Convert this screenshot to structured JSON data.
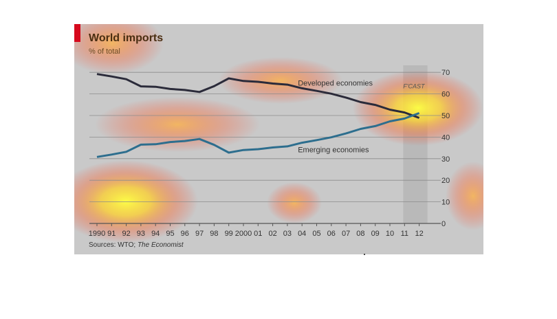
{
  "header": {
    "title": "World imports",
    "subtitle": "% of total"
  },
  "footer": {
    "source_prefix": "Sources: WTO; ",
    "source_italic": "The Economist"
  },
  "colors": {
    "background": "#c9c9c9",
    "developed": "#2b2b3a",
    "emerging": "#2d6e8e",
    "accent": "#d6091d",
    "gridline": "#8c8c8c"
  },
  "chart_data": {
    "type": "line",
    "title": "World imports",
    "subtitle": "% of total",
    "x": [
      1990,
      1991,
      1992,
      1993,
      1994,
      1995,
      1996,
      1997,
      1998,
      1999,
      2000,
      2001,
      2002,
      2003,
      2004,
      2005,
      2006,
      2007,
      2008,
      2009,
      2010,
      2011,
      2012
    ],
    "x_tick_labels": [
      "1990",
      "91",
      "92",
      "93",
      "94",
      "95",
      "96",
      "97",
      "98",
      "99",
      "2000",
      "01",
      "02",
      "03",
      "04",
      "05",
      "06",
      "07",
      "08",
      "09",
      "10",
      "11",
      "12"
    ],
    "y_ticks": [
      0,
      10,
      20,
      30,
      40,
      50,
      60,
      70
    ],
    "ylim": [
      0,
      70
    ],
    "y_axis_side": "right",
    "grid": true,
    "forecast_label": "F'CAST",
    "forecast_from": 2011,
    "series": [
      {
        "name": "Developed economies",
        "values": [
          69.2,
          68.1,
          66.8,
          63.5,
          63.3,
          62.3,
          61.8,
          60.9,
          63.6,
          67.2,
          66.0,
          65.6,
          64.8,
          64.3,
          62.6,
          61.4,
          60.1,
          58.3,
          56.2,
          54.9,
          52.7,
          51.4,
          48.9
        ]
      },
      {
        "name": "Emerging economies",
        "values": [
          30.8,
          31.9,
          33.2,
          36.5,
          36.7,
          37.7,
          38.2,
          39.1,
          36.4,
          32.8,
          34.0,
          34.4,
          35.2,
          35.7,
          37.4,
          38.6,
          39.9,
          41.7,
          43.8,
          45.1,
          47.3,
          48.6,
          51.1
        ]
      }
    ]
  }
}
